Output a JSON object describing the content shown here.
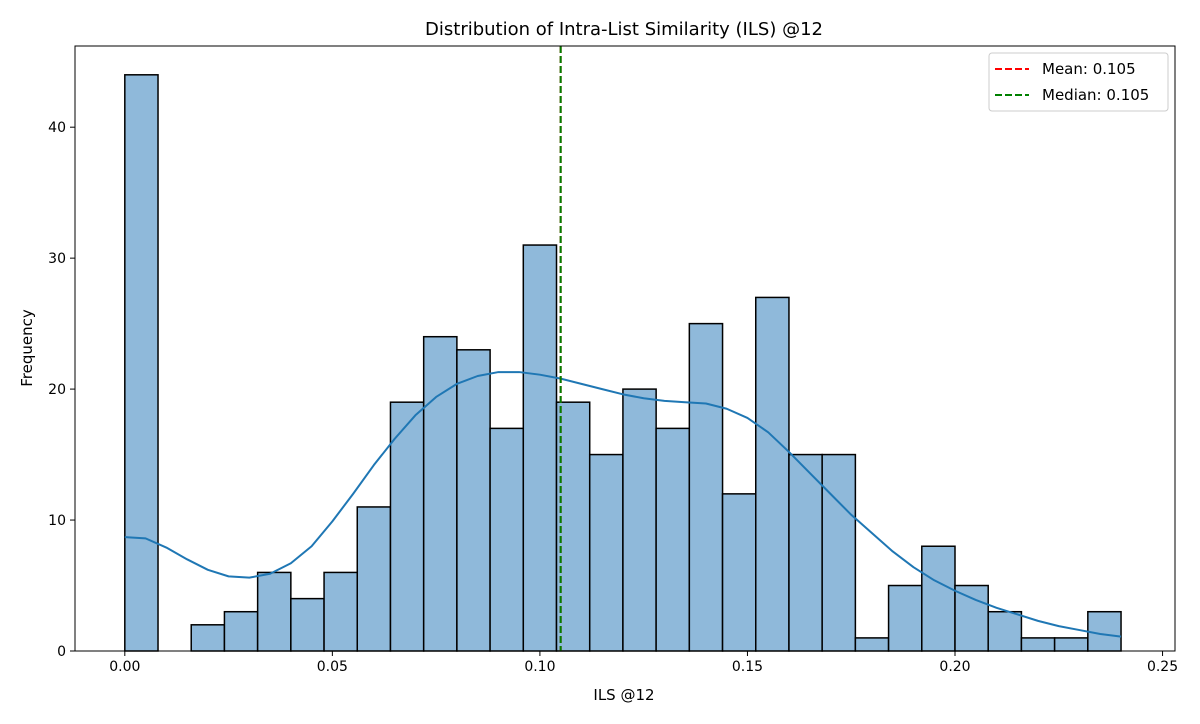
{
  "chart_data": {
    "type": "bar",
    "title": "Distribution of Intra-List Similarity (ILS) @12",
    "xlabel": "ILS @12",
    "ylabel": "Frequency",
    "xlim": [
      -0.012,
      0.253
    ],
    "ylim": [
      0,
      46.2
    ],
    "x_ticks": [
      0.0,
      0.05,
      0.1,
      0.15,
      0.2,
      0.25
    ],
    "x_tick_labels": [
      "0.00",
      "0.05",
      "0.10",
      "0.15",
      "0.20",
      "0.25"
    ],
    "y_ticks": [
      0,
      10,
      20,
      30,
      40
    ],
    "y_tick_labels": [
      "0",
      "10",
      "20",
      "30",
      "40"
    ],
    "bin_start": 0.0,
    "bin_width": 0.008,
    "counts": [
      44,
      0,
      2,
      3,
      6,
      4,
      6,
      11,
      19,
      24,
      23,
      17,
      31,
      19,
      15,
      20,
      17,
      25,
      12,
      27,
      15,
      15,
      1,
      5,
      8,
      5,
      3,
      1,
      1,
      3
    ],
    "kde": {
      "x": [
        0.0,
        0.005,
        0.01,
        0.015,
        0.02,
        0.025,
        0.03,
        0.035,
        0.04,
        0.045,
        0.05,
        0.055,
        0.06,
        0.065,
        0.07,
        0.075,
        0.08,
        0.085,
        0.09,
        0.095,
        0.1,
        0.105,
        0.11,
        0.115,
        0.12,
        0.125,
        0.13,
        0.135,
        0.14,
        0.145,
        0.15,
        0.155,
        0.16,
        0.165,
        0.17,
        0.175,
        0.18,
        0.185,
        0.19,
        0.195,
        0.2,
        0.205,
        0.21,
        0.215,
        0.22,
        0.225,
        0.23,
        0.235,
        0.24
      ],
      "y": [
        8.7,
        8.6,
        7.9,
        7.0,
        6.2,
        5.7,
        5.6,
        5.9,
        6.7,
        8.0,
        9.9,
        12.0,
        14.2,
        16.2,
        18.0,
        19.4,
        20.4,
        21.0,
        21.3,
        21.3,
        21.1,
        20.8,
        20.4,
        20.0,
        19.6,
        19.3,
        19.1,
        19.0,
        18.9,
        18.5,
        17.8,
        16.7,
        15.2,
        13.6,
        12.0,
        10.4,
        9.0,
        7.6,
        6.4,
        5.4,
        4.6,
        3.9,
        3.3,
        2.8,
        2.3,
        1.9,
        1.6,
        1.3,
        1.1
      ]
    },
    "reference_lines": [
      {
        "label": "Mean: 0.105",
        "x": 0.105,
        "color": "#ff0000",
        "style": "dashed"
      },
      {
        "label": "Median: 0.105",
        "x": 0.105,
        "color": "#008000",
        "style": "dashed"
      }
    ],
    "colors": {
      "bar_fill": "#8fb9da",
      "bar_edge": "#000000",
      "kde": "#1f77b4"
    },
    "legend_position": "top-right",
    "grid": false
  }
}
